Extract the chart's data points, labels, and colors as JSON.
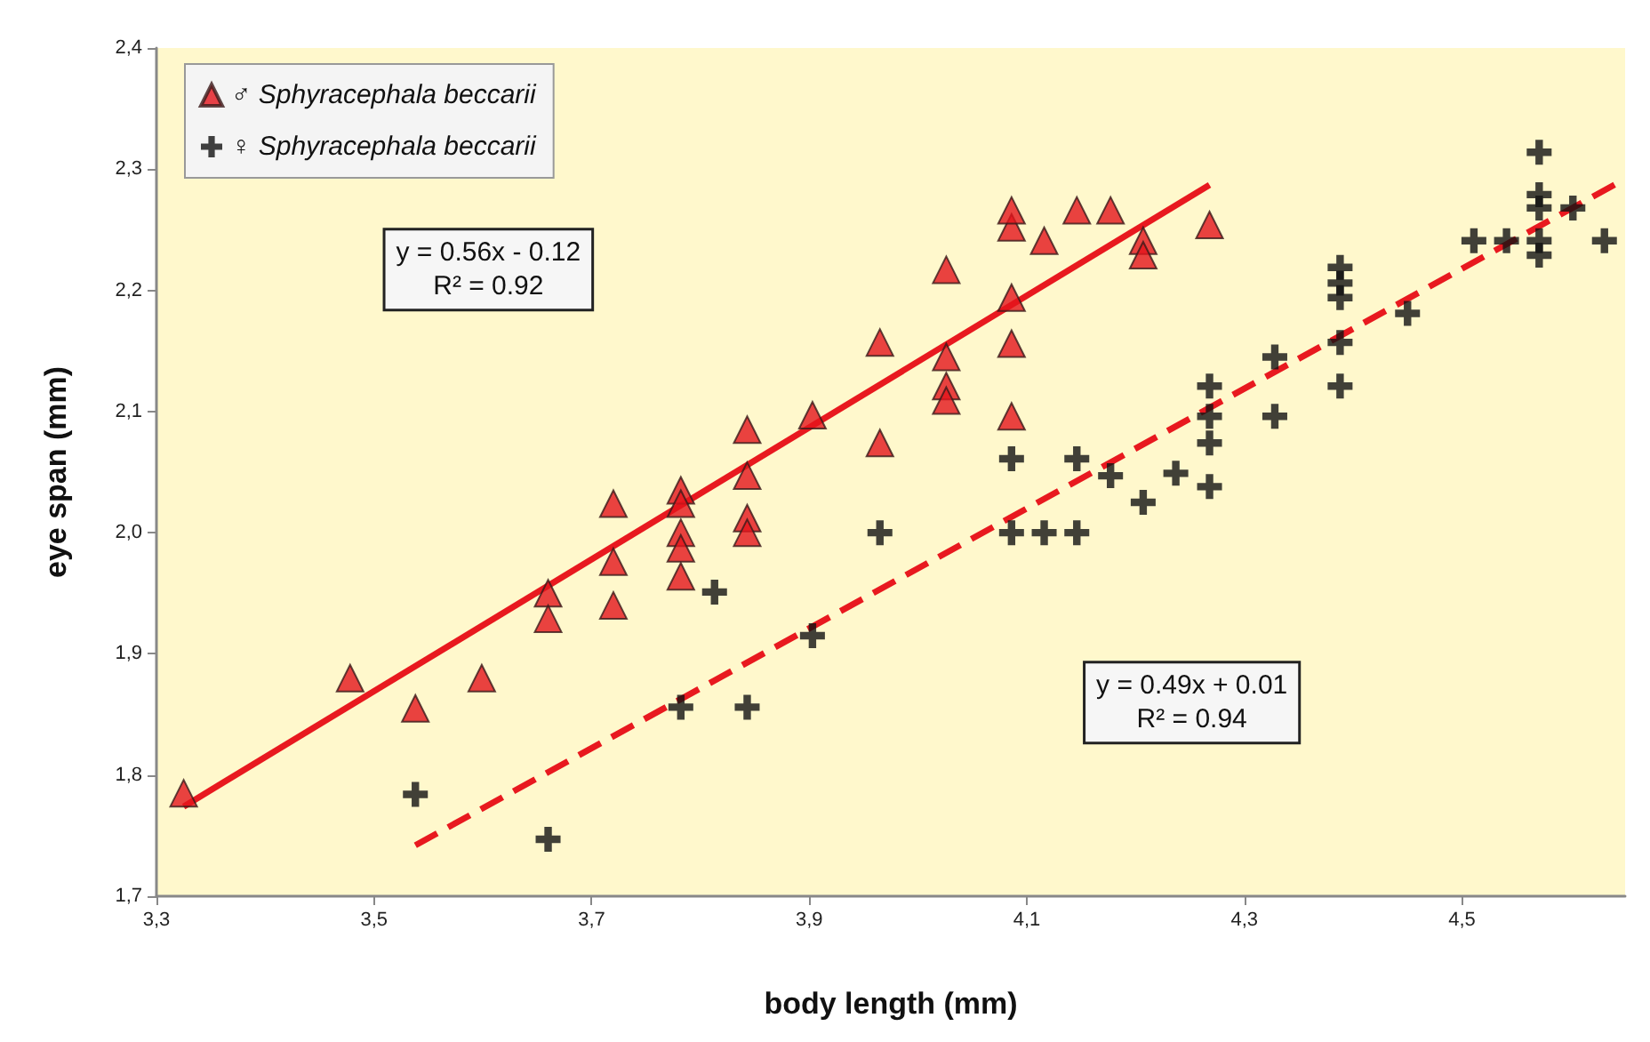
{
  "chart_data": {
    "type": "scatter",
    "xlabel": "body length (mm)",
    "ylabel": "eye span (mm)",
    "xlim": [
      3.3,
      4.65
    ],
    "ylim": [
      1.7,
      2.4
    ],
    "xticks": [
      {
        "value": 3.3,
        "label": "3,3"
      },
      {
        "value": 3.5,
        "label": "3,5"
      },
      {
        "value": 3.7,
        "label": "3,7"
      },
      {
        "value": 3.9,
        "label": "3,9"
      },
      {
        "value": 4.1,
        "label": "4,1"
      },
      {
        "value": 4.3,
        "label": "4,3"
      },
      {
        "value": 4.5,
        "label": "4,5"
      }
    ],
    "yticks": [
      {
        "value": 1.7,
        "label": "1,7"
      },
      {
        "value": 1.8,
        "label": "1,8"
      },
      {
        "value": 1.9,
        "label": "1,9"
      },
      {
        "value": 2.0,
        "label": "2,0"
      },
      {
        "value": 2.1,
        "label": "2,1"
      },
      {
        "value": 2.2,
        "label": "2,2"
      },
      {
        "value": 2.3,
        "label": "2,3"
      },
      {
        "value": 2.4,
        "label": "2,4"
      }
    ],
    "grid": false,
    "legend": "top left",
    "series": [
      {
        "name": "♂ Sphyracephala beccarii",
        "color": "#e3141b",
        "marker": "triangle",
        "x": [
          3.325,
          3.478,
          3.538,
          3.599,
          3.66,
          3.66,
          3.72,
          3.72,
          3.72,
          3.782,
          3.782,
          3.782,
          3.782,
          3.782,
          3.843,
          3.843,
          3.843,
          3.843,
          3.903,
          3.965,
          3.965,
          4.026,
          4.026,
          4.026,
          4.026,
          4.086,
          4.086,
          4.086,
          4.086,
          4.086,
          4.116,
          4.146,
          4.177,
          4.207,
          4.207,
          4.268
        ],
        "values": [
          1.785,
          1.88,
          1.855,
          1.88,
          1.95,
          1.929,
          2.024,
          1.976,
          1.94,
          2.035,
          2.024,
          2.0,
          1.987,
          1.964,
          2.085,
          2.047,
          2.012,
          2.0,
          2.097,
          2.157,
          2.074,
          2.217,
          2.145,
          2.121,
          2.109,
          2.096,
          2.156,
          2.194,
          2.252,
          2.266,
          2.241,
          2.266,
          2.266,
          2.241,
          2.229,
          2.254
        ]
      },
      {
        "name": "♀ Sphyracephala beccarii",
        "color": "#111111",
        "marker": "cross",
        "x": [
          3.538,
          3.66,
          3.813,
          3.903,
          3.782,
          3.843,
          3.965,
          4.086,
          4.086,
          4.116,
          4.146,
          4.146,
          4.177,
          4.207,
          4.237,
          4.268,
          4.268,
          4.268,
          4.268,
          4.328,
          4.328,
          4.388,
          4.388,
          4.388,
          4.388,
          4.388,
          4.45,
          4.511,
          4.541,
          4.571,
          4.571,
          4.571,
          4.571,
          4.571,
          4.602,
          4.631
        ],
        "values": [
          1.784,
          1.747,
          1.951,
          1.915,
          1.856,
          1.856,
          2.0,
          2.061,
          2.0,
          2.0,
          2.061,
          2.0,
          2.047,
          2.025,
          2.049,
          2.121,
          2.096,
          2.074,
          2.038,
          2.145,
          2.096,
          2.219,
          2.206,
          2.194,
          2.157,
          2.121,
          2.181,
          2.241,
          2.241,
          2.314,
          2.279,
          2.268,
          2.241,
          2.229,
          2.268,
          2.241
        ]
      },
      {
        "type": "line",
        "color": "#e8191f",
        "line_style": "solid",
        "marker": "none",
        "x": [
          3.325,
          4.268
        ],
        "values": [
          1.774,
          2.287
        ]
      },
      {
        "type": "line",
        "color": "#e8191f",
        "line_style": "dashed",
        "marker": "none",
        "x": [
          3.538,
          4.65
        ],
        "values": [
          1.742,
          2.292
        ]
      }
    ],
    "annotations": [
      "y = 0.56x - 0.12\nR² = 0.92",
      "y = 0.49x + 0.01\nR² = 0.94"
    ]
  }
}
